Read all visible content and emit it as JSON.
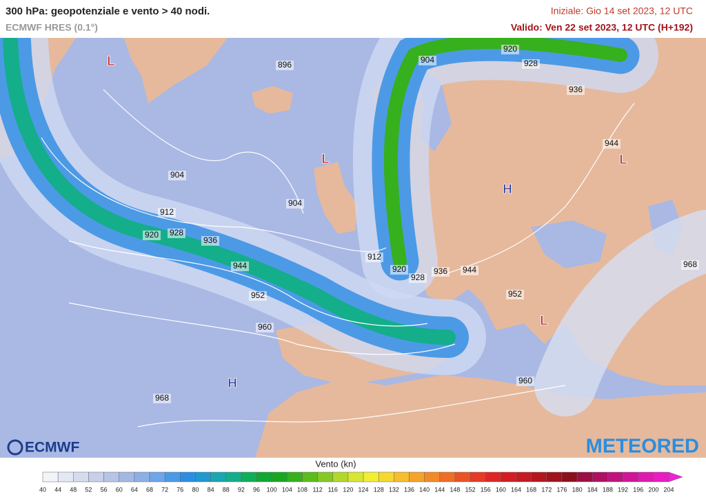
{
  "header": {
    "title": "300 hPa: geopotenziale e vento > 40 nodi.",
    "model": "ECMWF HRES (0.1°)",
    "initial": "Iniziale: Gio 14 set 2023, 12 UTC",
    "valid": "Valido: Ven 22 set 2023, 12 UTC (H+192)"
  },
  "map": {
    "contour_labels": [
      896,
      904,
      920,
      928,
      936,
      944,
      904,
      904,
      912,
      920,
      928,
      936,
      944,
      952,
      960,
      968,
      912,
      920,
      928,
      936,
      944,
      952,
      960,
      968
    ],
    "pressure_centers": [
      {
        "label": "L",
        "color": "#c0282d"
      },
      {
        "label": "L",
        "color": "#c0282d"
      },
      {
        "label": "L",
        "color": "#c0282d"
      },
      {
        "label": "L",
        "color": "#c0282d"
      },
      {
        "label": "H",
        "color": "#2a3a9c"
      },
      {
        "label": "H",
        "color": "#2a3a9c"
      }
    ]
  },
  "logos": {
    "left": "ECMWF",
    "right": "METEORED"
  },
  "colorbar": {
    "title": "Vento (kn)",
    "ticks": [
      40,
      44,
      48,
      52,
      56,
      60,
      64,
      68,
      72,
      76,
      80,
      84,
      88,
      92,
      96,
      100,
      104,
      108,
      112,
      116,
      120,
      124,
      128,
      132,
      136,
      140,
      144,
      148,
      152,
      156,
      160,
      164,
      168,
      172,
      176,
      180,
      184,
      188,
      192,
      196,
      200,
      204
    ],
    "colors": [
      "#f2f4fa",
      "#e4e8f4",
      "#d6dcef",
      "#c6d0ea",
      "#b6c4e6",
      "#a4b8e4",
      "#8cb0e6",
      "#6ea6e8",
      "#4c9ae6",
      "#2c8ee2",
      "#2098d0",
      "#1aa6b0",
      "#14ae8a",
      "#10ae5a",
      "#10a832",
      "#18a820",
      "#36b01c",
      "#5cbc1e",
      "#86c824",
      "#b2d82c",
      "#d8e634",
      "#f2ee34",
      "#f6d830",
      "#f6be2c",
      "#f4a42a",
      "#f28a28",
      "#ee6e26",
      "#ea5226",
      "#e43a26",
      "#de2626",
      "#d21e22",
      "#c41a20",
      "#b4161e",
      "#a0121c",
      "#8c101c",
      "#9a1040",
      "#ae1062",
      "#c0127e",
      "#d01698",
      "#de1aae",
      "#e81cc2",
      "#ee22d6"
    ]
  }
}
